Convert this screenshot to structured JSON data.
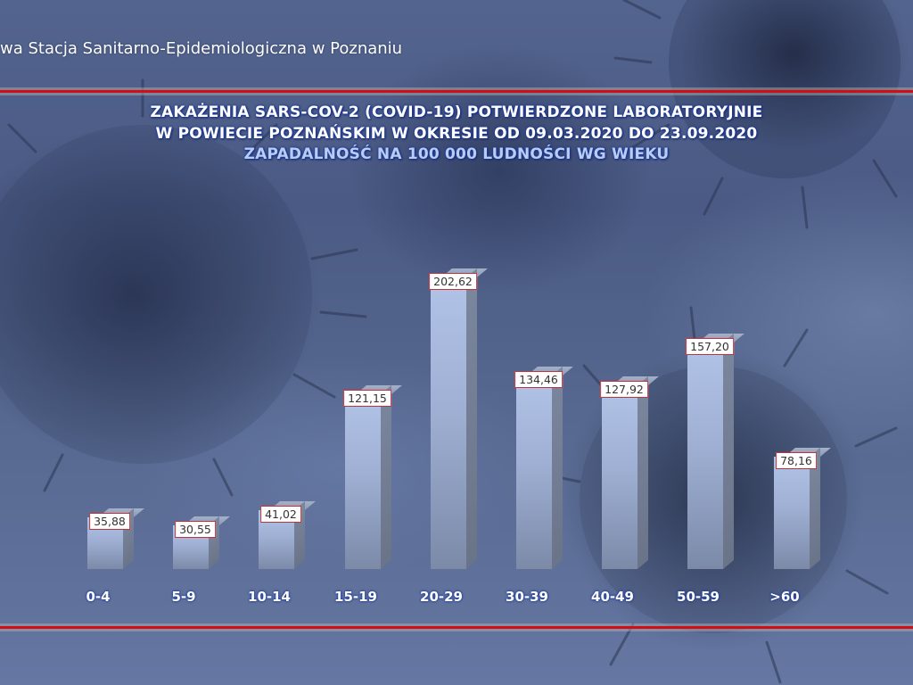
{
  "header": {
    "organization_text": "wa Stacja Sanitarno-Epidemiologiczna w Poznaniu"
  },
  "title": {
    "line1": "ZAKAŻENIA SARS-COV-2 (COVID-19) POTWIERDZONE LABORATORYJNIE",
    "line2": "W POWIECIE POZNAŃSKIM W OKRESIE OD 09.03.2020 DO 23.09.2020",
    "line3": "ZAPADALNOŚĆ NA 100 000 LUDNOŚCI WG WIEKU"
  },
  "colors": {
    "rule_red": "#d10f12",
    "bar_front": "#a9bae0",
    "bar_side": "#737e95",
    "label_border": "#c0333a",
    "subtitle": "#b9cdf2"
  },
  "chart_data": {
    "type": "bar",
    "title": "ZAKAŻENIA SARS-COV-2 (COVID-19) POTWIERDZONE LABORATORYJNIE W POWIECIE POZNAŃSKIM W OKRESIE OD 09.03.2020 DO 23.09.2020",
    "subtitle": "ZAPADALNOŚĆ NA 100 000 LUDNOŚCI WG WIEKU",
    "xlabel": "",
    "ylabel": "",
    "categories": [
      "0-4",
      "5-9",
      "10-14",
      "15-19",
      "20-29",
      "30-39",
      "40-49",
      "50-59",
      ">60"
    ],
    "values": [
      35.88,
      30.55,
      41.02,
      121.15,
      202.62,
      134.46,
      127.92,
      157.2,
      78.16
    ],
    "value_labels": [
      "35,88",
      "30,55",
      "41,02",
      "121,15",
      "202,62",
      "134,46",
      "127,92",
      "157,20",
      "78,16"
    ],
    "grid": false,
    "legend": null,
    "style": "3d-columns"
  }
}
